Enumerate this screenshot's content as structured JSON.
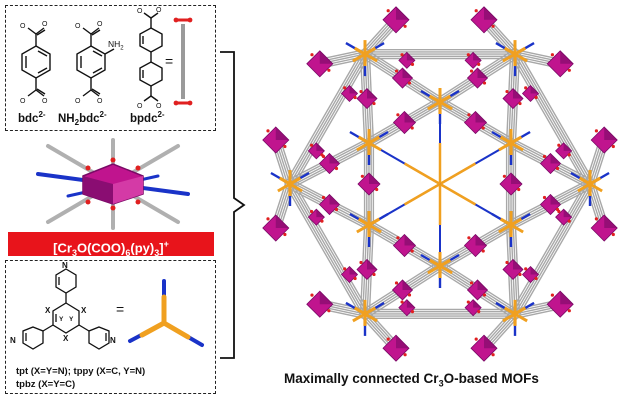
{
  "ligands_top": {
    "bdc_label": "bdc",
    "bdc_charge": "2-",
    "nh2bdc_prefix": "NH",
    "nh2bdc_sub": "2",
    "nh2bdc_name": "bdc",
    "nh2bdc_charge": "2-",
    "bpdc_label": "bpdc",
    "bpdc_charge": "2-",
    "nh2_group": "NH",
    "nh2_sub": "2",
    "equals": "=",
    "oxygen_minus": "O"
  },
  "cluster": {
    "formula_a": "[Cr",
    "formula_sub3": "3",
    "formula_b": "O(COO)",
    "formula_sub6": "6",
    "formula_c": "(py)",
    "formula_sub3b": "3",
    "formula_d": "]",
    "formula_charge": "+"
  },
  "ligands_bottom": {
    "atom_n": "N",
    "atom_x": "X",
    "atom_y": "Y",
    "equals": "=",
    "line1": "tpt (X=Y=N); tppy (X=C, Y=N)",
    "line2": "tpbz (X=Y=C)"
  },
  "mof": {
    "caption_a": "Maximally connected Cr",
    "caption_sub": "3",
    "caption_b": "O-based MOFs"
  },
  "colors": {
    "polyhedron": "#c0148e",
    "polyhedron_dark": "#7a0a66",
    "linker_gray": "#a8a8a8",
    "nitrogen_blue": "#1a33c8",
    "node_orange": "#f0a020",
    "oxygen_red": "#e02020",
    "banner_red": "#e8141b"
  }
}
